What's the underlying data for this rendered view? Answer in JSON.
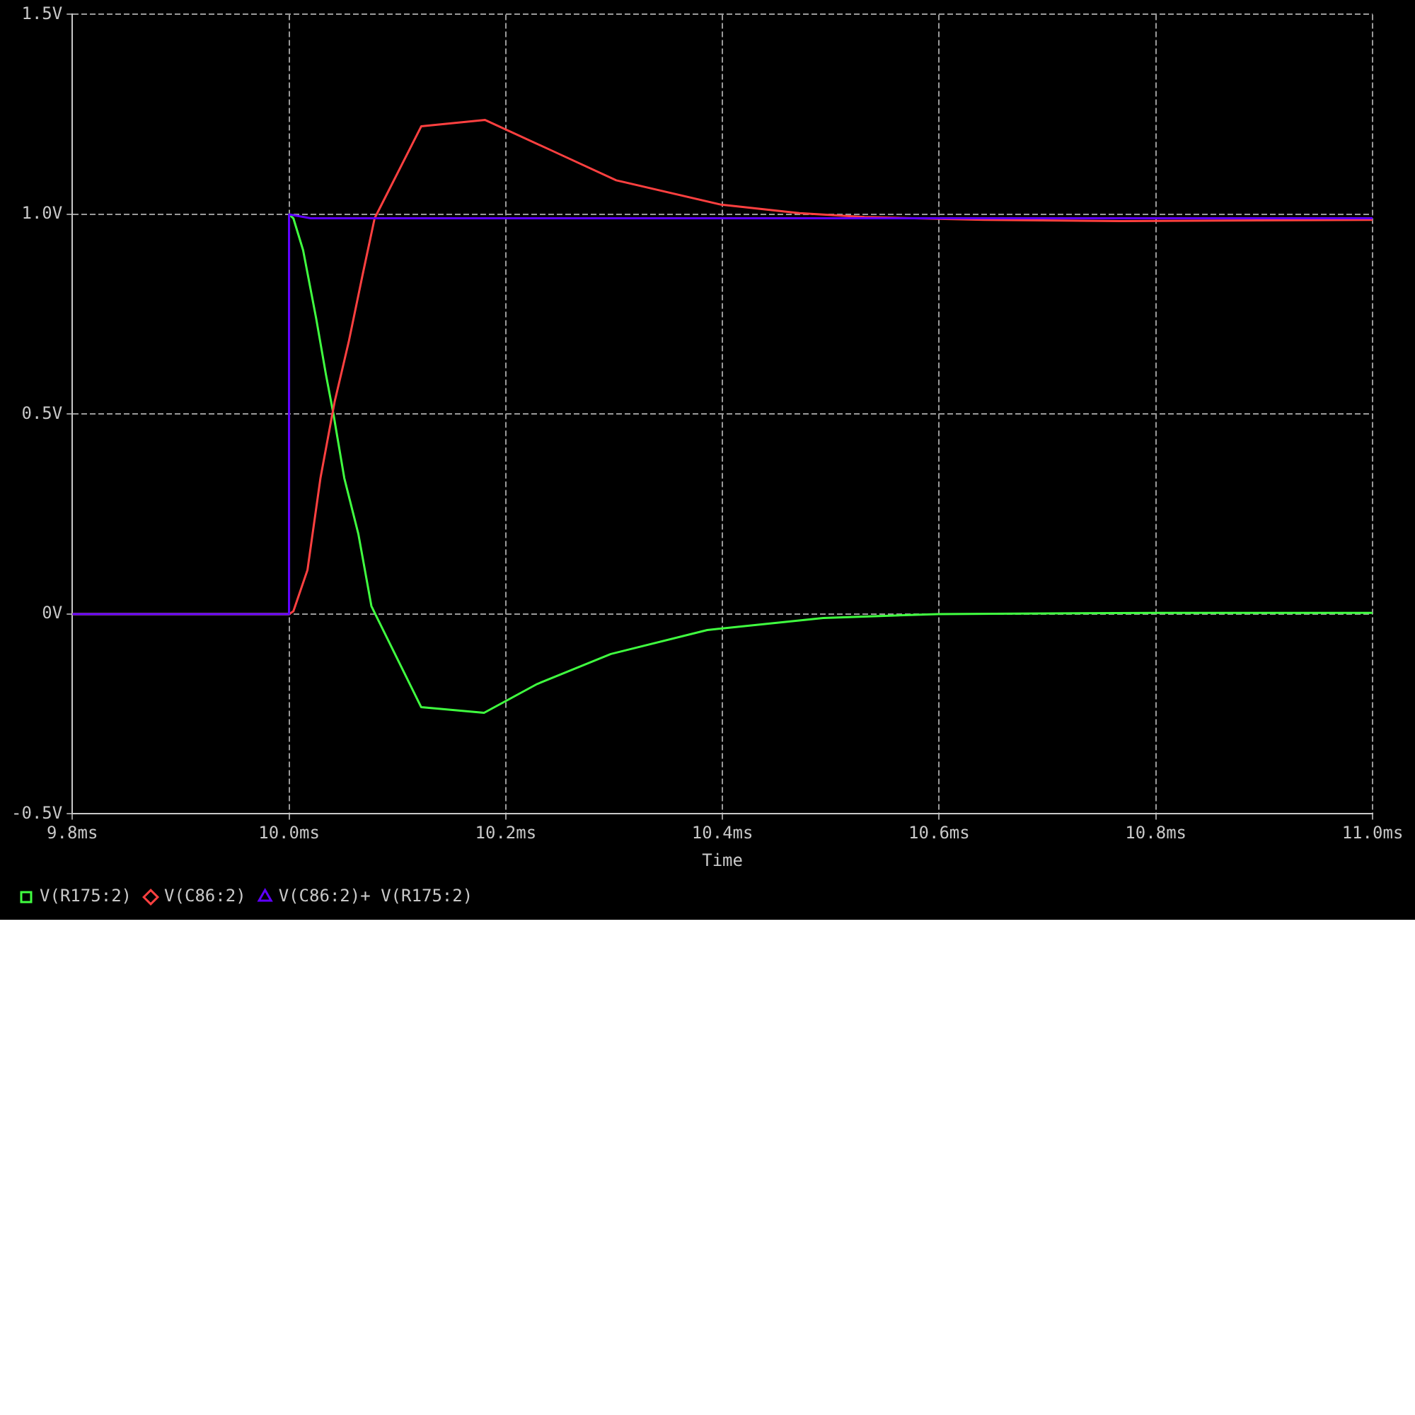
{
  "chart_data": {
    "type": "line",
    "xlabel": "Time",
    "xlim": [
      9.8,
      11.0
    ],
    "xticks": [
      {
        "value": 9.8,
        "label": "9.8ms"
      },
      {
        "value": 10.0,
        "label": "10.0ms"
      },
      {
        "value": 10.2,
        "label": "10.2ms"
      },
      {
        "value": 10.4,
        "label": "10.4ms"
      },
      {
        "value": 10.6,
        "label": "10.6ms"
      },
      {
        "value": 10.8,
        "label": "10.8ms"
      },
      {
        "value": 11.0,
        "label": "11.0ms"
      }
    ],
    "ylim": [
      -0.5,
      1.5
    ],
    "yticks": [
      {
        "value": -0.5,
        "label": "-0.5V"
      },
      {
        "value": 0,
        "label": "0V"
      },
      {
        "value": 0.5,
        "label": "0.5V"
      },
      {
        "value": 1.0,
        "label": "1.0V"
      },
      {
        "value": 1.5,
        "label": "1.5V"
      }
    ],
    "grid": true,
    "legend": "bottom",
    "line_style": "solid",
    "series": [
      {
        "name": "V(R175:2)",
        "color": "#40ff40",
        "x": [
          9.8,
          10.0,
          10.0,
          10.004,
          10.013,
          10.025,
          10.034,
          10.041,
          10.051,
          10.064,
          10.076,
          10.079,
          10.122,
          10.18,
          10.229,
          10.297,
          10.386,
          10.493,
          10.599,
          10.8,
          11.0
        ],
        "values": [
          0,
          0,
          1.0,
          0.99,
          0.91,
          0.74,
          0.6,
          0.5,
          0.34,
          0.2,
          0.02,
          0.003,
          -0.233,
          -0.247,
          -0.175,
          -0.1,
          -0.04,
          -0.01,
          0,
          0.003,
          0.003
        ]
      },
      {
        "name": "V(C86:2)",
        "color": "#ff4040",
        "x": [
          9.8,
          10.0,
          10.004,
          10.017,
          10.029,
          10.042,
          10.055,
          10.068,
          10.079,
          10.122,
          10.181,
          10.242,
          10.302,
          10.399,
          10.471,
          10.531,
          10.641,
          10.768,
          11.0
        ],
        "values": [
          0,
          0,
          0.007,
          0.11,
          0.34,
          0.53,
          0.68,
          0.85,
          0.99,
          1.22,
          1.236,
          1.16,
          1.085,
          1.024,
          1.003,
          0.993,
          0.986,
          0.983,
          0.986
        ]
      },
      {
        "name": "V(C86:2)+ V(R175:2)",
        "color": "#6000ff",
        "x": [
          9.8,
          10.0,
          10.0,
          10.02,
          11.0
        ],
        "values": [
          0,
          0,
          1.0,
          0.99,
          0.99
        ]
      }
    ]
  }
}
